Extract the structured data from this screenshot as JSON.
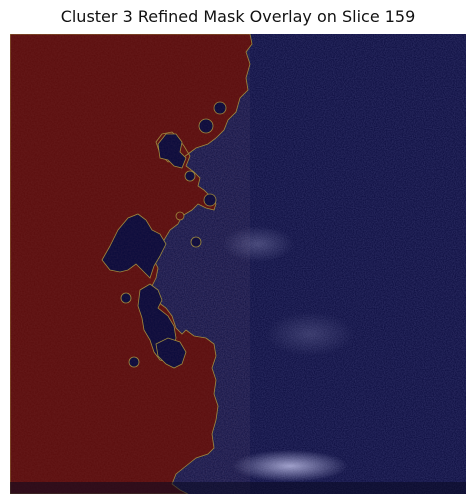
{
  "title": "Cluster 3 Refined Mask Overlay on Slice 159",
  "colors": {
    "mask_overlay": "#5a0c0c",
    "background_overlay": "#07083a",
    "mask_edge": "#9c8a3a",
    "bright_speckle": "#c7c7ff"
  }
}
